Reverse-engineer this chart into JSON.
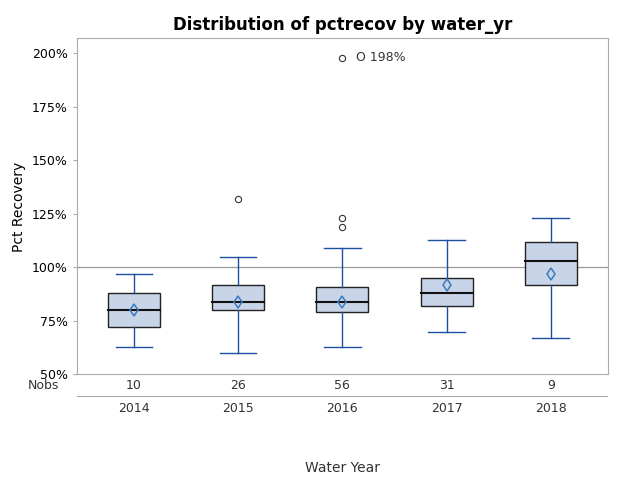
{
  "title": "Distribution of pctrecov by water_yr",
  "xlabel": "Water Year",
  "ylabel": "Pct Recovery",
  "years": [
    2014,
    2015,
    2016,
    2017,
    2018
  ],
  "nobs": [
    10,
    26,
    56,
    31,
    9
  ],
  "box_data": {
    "2014": {
      "q1": 72,
      "median": 80,
      "q3": 88,
      "mean": 80,
      "whisker_low": 63,
      "whisker_high": 97,
      "outliers": []
    },
    "2015": {
      "q1": 80,
      "median": 84,
      "q3": 92,
      "mean": 84,
      "whisker_low": 60,
      "whisker_high": 105,
      "outliers": [
        132
      ]
    },
    "2016": {
      "q1": 79,
      "median": 84,
      "q3": 91,
      "mean": 84,
      "whisker_low": 63,
      "whisker_high": 109,
      "outliers": [
        119,
        123
      ]
    },
    "2017": {
      "q1": 82,
      "median": 88,
      "q3": 95,
      "mean": 92,
      "whisker_low": 70,
      "whisker_high": 113,
      "outliers": []
    },
    "2018": {
      "q1": 92,
      "median": 103,
      "q3": 112,
      "mean": 97,
      "whisker_low": 67,
      "whisker_high": 123,
      "outliers": []
    }
  },
  "outlier_annotation": {
    "year_idx": 2,
    "value": 198,
    "label": "O 198%"
  },
  "hline_y": 100,
  "ylim": [
    50,
    207
  ],
  "yticks": [
    50,
    75,
    100,
    125,
    150,
    175,
    200
  ],
  "ytick_labels": [
    "50%",
    "75%",
    "100%",
    "125%",
    "150%",
    "175%",
    "200%"
  ],
  "box_facecolor": "#c8d4e8",
  "box_edgecolor": "#222222",
  "median_color": "#111111",
  "whisker_color": "#1a50a0",
  "cap_color": "#1a50a0",
  "flier_color": "#333333",
  "mean_marker_color": "#3a7abf",
  "hline_color": "#999999",
  "nobs_label_color": "#333333",
  "background_color": "#ffffff",
  "title_fontsize": 12,
  "label_fontsize": 10,
  "tick_fontsize": 9,
  "box_width": 0.5
}
